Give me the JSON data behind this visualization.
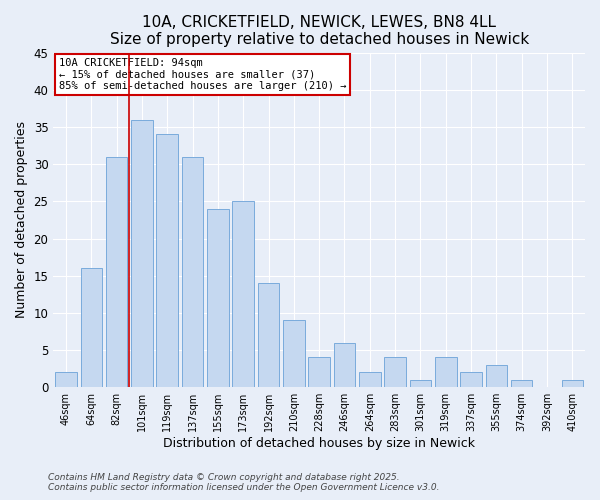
{
  "title": "10A, CRICKETFIELD, NEWICK, LEWES, BN8 4LL",
  "subtitle": "Size of property relative to detached houses in Newick",
  "xlabel": "Distribution of detached houses by size in Newick",
  "ylabel": "Number of detached properties",
  "bins": [
    "46sqm",
    "64sqm",
    "82sqm",
    "101sqm",
    "119sqm",
    "137sqm",
    "155sqm",
    "173sqm",
    "192sqm",
    "210sqm",
    "228sqm",
    "246sqm",
    "264sqm",
    "283sqm",
    "301sqm",
    "319sqm",
    "337sqm",
    "355sqm",
    "374sqm",
    "392sqm",
    "410sqm"
  ],
  "values": [
    2,
    16,
    31,
    36,
    34,
    31,
    24,
    25,
    14,
    9,
    4,
    6,
    2,
    4,
    1,
    4,
    2,
    3,
    1,
    0,
    1
  ],
  "bar_color": "#c5d8f0",
  "bar_edge_color": "#7aabdc",
  "vline_x_index": 3,
  "vline_color": "#cc0000",
  "annotation_title": "10A CRICKETFIELD: 94sqm",
  "annotation_line1": "← 15% of detached houses are smaller (37)",
  "annotation_line2": "85% of semi-detached houses are larger (210) →",
  "annotation_box_color": "#cc0000",
  "ylim": [
    0,
    45
  ],
  "yticks": [
    0,
    5,
    10,
    15,
    20,
    25,
    30,
    35,
    40,
    45
  ],
  "bg_color": "#e8eef8",
  "plot_bg_color": "#e8eef8",
  "footer1": "Contains HM Land Registry data © Crown copyright and database right 2025.",
  "footer2": "Contains public sector information licensed under the Open Government Licence v3.0.",
  "title_fontsize": 11,
  "annot_fontsize": 7.5,
  "footer_fontsize": 6.5
}
